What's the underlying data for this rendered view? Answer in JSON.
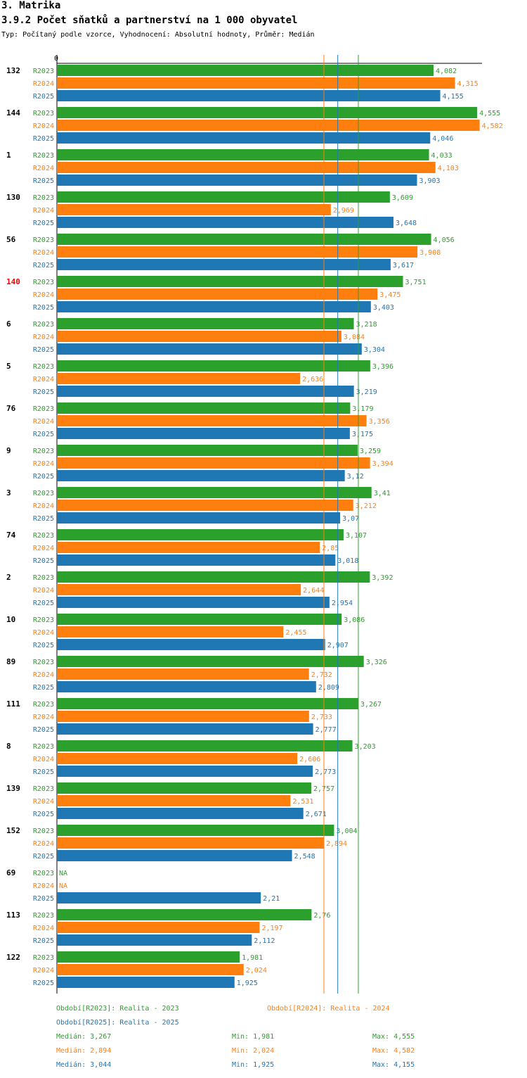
{
  "header": {
    "section": "3. Matrika",
    "title": "3.9.2 Počet sňatků a partnerství na 1 000 obyvatel",
    "subtitle": "Typ: Počítaný podle vzorce, Vyhodnocení: Absolutní hodnoty, Průměr: Medián"
  },
  "colors": {
    "R2023": "#2ca02c",
    "R2024": "#ff7f0e",
    "R2025": "#1f77b4",
    "highlight": "#ff0000"
  },
  "chart_data": {
    "type": "bar",
    "orientation": "horizontal",
    "axis_zero_label": "0",
    "xlim": [
      0,
      4.7
    ],
    "series_names": [
      "R2023",
      "R2024",
      "R2025"
    ],
    "categories": [
      "132",
      "144",
      "1",
      "130",
      "56",
      "140",
      "6",
      "5",
      "76",
      "9",
      "3",
      "74",
      "2",
      "10",
      "89",
      "111",
      "8",
      "139",
      "152",
      "69",
      "113",
      "122"
    ],
    "highlighted_category": "140",
    "series": [
      {
        "name": "R2023",
        "values": [
          4.082,
          4.555,
          4.033,
          3.609,
          4.056,
          3.751,
          3.218,
          3.396,
          3.179,
          3.259,
          3.41,
          3.107,
          3.392,
          3.086,
          3.326,
          3.267,
          3.203,
          2.757,
          3.004,
          null,
          2.76,
          1.981
        ],
        "labels": [
          "4,082",
          "4,555",
          "4,033",
          "3,609",
          "4,056",
          "3,751",
          "3,218",
          "3,396",
          "3,179",
          "3,259",
          "3,41",
          "3,107",
          "3,392",
          "3,086",
          "3,326",
          "3,267",
          "3,203",
          "2,757",
          "3,004",
          "NA",
          "2,76",
          "1,981"
        ]
      },
      {
        "name": "R2024",
        "values": [
          4.315,
          4.582,
          4.103,
          2.969,
          3.908,
          3.475,
          3.084,
          2.636,
          3.356,
          3.394,
          3.212,
          2.85,
          2.644,
          2.455,
          2.732,
          2.733,
          2.606,
          2.531,
          2.894,
          null,
          2.197,
          2.024
        ],
        "labels": [
          "4,315",
          "4,582",
          "4,103",
          "2,969",
          "3,908",
          "3,475",
          "3,084",
          "2,636",
          "3,356",
          "3,394",
          "3,212",
          "2,85",
          "2,644",
          "2,455",
          "2,732",
          "2,733",
          "2,606",
          "2,531",
          "2,894",
          "NA",
          "2,197",
          "2,024"
        ]
      },
      {
        "name": "R2025",
        "values": [
          4.155,
          4.046,
          3.903,
          3.648,
          3.617,
          3.403,
          3.304,
          3.219,
          3.175,
          3.12,
          3.07,
          3.018,
          2.954,
          2.907,
          2.809,
          2.777,
          2.773,
          2.671,
          2.548,
          2.21,
          2.112,
          1.925
        ],
        "labels": [
          "4,155",
          "4,046",
          "3,903",
          "3,648",
          "3,617",
          "3,403",
          "3,304",
          "3,219",
          "3,175",
          "3,12",
          "3,07",
          "3,018",
          "2,954",
          "2,907",
          "2,809",
          "2,777",
          "2,773",
          "2,671",
          "2,548",
          "2,21",
          "2,112",
          "1,925"
        ]
      }
    ],
    "median_lines": {
      "R2023": 3.267,
      "R2024": 2.894,
      "R2025": 3.044
    }
  },
  "legend": {
    "periods": [
      {
        "key": "R2023",
        "text": "Období[R2023]: Realita - 2023"
      },
      {
        "key": "R2024",
        "text": "Období[R2024]: Realita - 2024"
      },
      {
        "key": "R2025",
        "text": "Období[R2025]: Realita - 2025"
      }
    ],
    "stats": [
      {
        "key": "R2023",
        "median": "Medián: 3,267",
        "min": "Min: 1,981",
        "max": "Max: 4,555"
      },
      {
        "key": "R2024",
        "median": "Medián: 2,894",
        "min": "Min: 2,024",
        "max": "Max: 4,582"
      },
      {
        "key": "R2025",
        "median": "Medián: 3,044",
        "min": "Min: 1,925",
        "max": "Max: 4,155"
      }
    ]
  }
}
